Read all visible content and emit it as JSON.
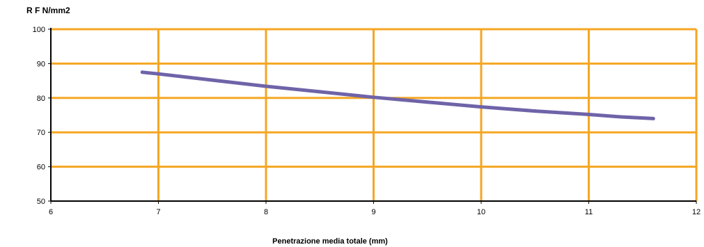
{
  "chart_data": {
    "type": "line",
    "ylabel": "R F N/mm2",
    "xlabel": "Penetrazione media totale (mm)",
    "xlim": [
      6,
      12
    ],
    "ylim": [
      50,
      100
    ],
    "x_ticks": [
      "6",
      "7",
      "8",
      "9",
      "10",
      "11",
      "12"
    ],
    "y_ticks": [
      "50",
      "60",
      "70",
      "80",
      "90",
      "100"
    ],
    "grid": true,
    "legend": "none",
    "colors": {
      "grid": "#f5a623",
      "series": "#6f63a8",
      "axis": "#000000"
    },
    "series": [
      {
        "x": [
          6.85,
          7.0,
          7.5,
          8.0,
          8.5,
          9.0,
          9.5,
          10.0,
          10.5,
          11.0,
          11.3,
          11.6
        ],
        "values": [
          87.5,
          87.0,
          85.2,
          83.4,
          81.8,
          80.2,
          78.8,
          77.4,
          76.2,
          75.2,
          74.5,
          74.0
        ]
      }
    ]
  }
}
